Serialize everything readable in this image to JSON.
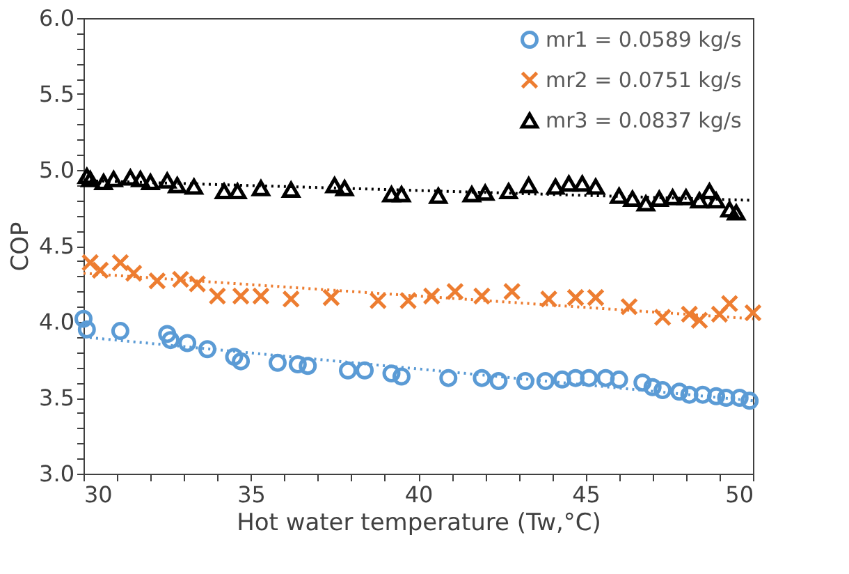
{
  "chart_data": {
    "type": "scatter",
    "xlabel": "Hot water temperature (Tw,°C)",
    "ylabel": "COP",
    "xlim": [
      30,
      50
    ],
    "ylim": [
      3.0,
      6.0
    ],
    "xticks": [
      30,
      {
        "value": 31,
        "label": null
      },
      {
        "value": 32,
        "label": null
      },
      {
        "value": 33,
        "label": null
      },
      {
        "value": 34,
        "label": null
      },
      35,
      {
        "value": 36,
        "label": null
      },
      {
        "value": 37,
        "label": null
      },
      {
        "value": 38,
        "label": null
      },
      {
        "value": 39,
        "label": null
      },
      40,
      {
        "value": 41,
        "label": null
      },
      {
        "value": 42,
        "label": null
      },
      {
        "value": 43,
        "label": null
      },
      {
        "value": 44,
        "label": null
      },
      45,
      {
        "value": 46,
        "label": null
      },
      {
        "value": 47,
        "label": null
      },
      {
        "value": 48,
        "label": null
      },
      {
        "value": 49,
        "label": null
      },
      50
    ],
    "yticks": [
      {
        "value": 3.0,
        "label": "3.0"
      },
      {
        "value": 3.1,
        "label": null
      },
      {
        "value": 3.2,
        "label": null
      },
      {
        "value": 3.3,
        "label": null
      },
      {
        "value": 3.4,
        "label": null
      },
      3.5,
      {
        "value": 3.6,
        "label": null
      },
      {
        "value": 3.7,
        "label": null
      },
      {
        "value": 3.8,
        "label": null
      },
      {
        "value": 3.9,
        "label": null
      },
      {
        "value": 4.0,
        "label": "4.0"
      },
      {
        "value": 4.1,
        "label": null
      },
      {
        "value": 4.2,
        "label": null
      },
      {
        "value": 4.3,
        "label": null
      },
      {
        "value": 4.4,
        "label": null
      },
      4.5,
      {
        "value": 4.6,
        "label": null
      },
      {
        "value": 4.7,
        "label": null
      },
      {
        "value": 4.8,
        "label": null
      },
      {
        "value": 4.9,
        "label": null
      },
      {
        "value": 5.0,
        "label": "5.0"
      },
      {
        "value": 5.1,
        "label": null
      },
      {
        "value": 5.2,
        "label": null
      },
      {
        "value": 5.3,
        "label": null
      },
      {
        "value": 5.4,
        "label": null
      },
      5.5,
      {
        "value": 5.6,
        "label": null
      },
      {
        "value": 5.7,
        "label": null
      },
      {
        "value": 5.8,
        "label": null
      },
      {
        "value": 5.9,
        "label": null
      },
      {
        "value": 6.0,
        "label": "6.0"
      }
    ],
    "grid": false,
    "legend": "top right",
    "series": [
      {
        "name": "mr1 = 0.0589 kg/s",
        "color": "#5b9bd5",
        "marker": "circle",
        "x": [
          30.0,
          30.1,
          31.1,
          32.5,
          32.6,
          33.1,
          33.7,
          34.5,
          34.7,
          35.8,
          36.4,
          36.7,
          37.9,
          38.4,
          39.2,
          39.5,
          40.9,
          41.9,
          42.4,
          43.2,
          43.8,
          44.3,
          44.7,
          45.1,
          45.6,
          46.0,
          46.7,
          47.0,
          47.3,
          47.8,
          48.1,
          48.5,
          48.9,
          49.2,
          49.6,
          49.9
        ],
        "values": [
          4.02,
          3.95,
          3.94,
          3.92,
          3.88,
          3.86,
          3.82,
          3.77,
          3.74,
          3.73,
          3.72,
          3.71,
          3.68,
          3.68,
          3.66,
          3.64,
          3.63,
          3.63,
          3.61,
          3.61,
          3.61,
          3.62,
          3.63,
          3.63,
          3.63,
          3.62,
          3.6,
          3.57,
          3.55,
          3.54,
          3.52,
          3.52,
          3.51,
          3.5,
          3.5,
          3.48
        ]
      },
      {
        "name": "mr2 = 0.0751 kg/s",
        "color": "#ed7d31",
        "marker": "cross",
        "x": [
          30.2,
          30.5,
          31.1,
          31.5,
          32.2,
          32.9,
          33.4,
          34.0,
          34.7,
          35.3,
          36.2,
          37.4,
          38.8,
          39.7,
          40.4,
          41.1,
          41.9,
          42.8,
          43.9,
          44.7,
          45.3,
          46.3,
          47.3,
          48.1,
          48.4,
          49.0,
          49.3,
          50.0
        ],
        "values": [
          4.39,
          4.34,
          4.39,
          4.32,
          4.27,
          4.28,
          4.25,
          4.17,
          4.17,
          4.17,
          4.15,
          4.16,
          4.14,
          4.14,
          4.17,
          4.2,
          4.17,
          4.2,
          4.15,
          4.16,
          4.16,
          4.1,
          4.03,
          4.05,
          4.01,
          4.05,
          4.12,
          4.06
        ]
      },
      {
        "name": "mr3 = 0.0837 kg/s",
        "color": "#000000",
        "marker": "triangle",
        "x": [
          30.1,
          30.2,
          30.6,
          30.9,
          31.4,
          31.7,
          32.0,
          32.5,
          32.8,
          33.3,
          34.2,
          34.6,
          35.3,
          36.2,
          37.5,
          37.8,
          39.2,
          39.5,
          40.6,
          41.6,
          42.0,
          42.7,
          43.3,
          44.1,
          44.5,
          44.9,
          45.3,
          46.0,
          46.4,
          46.8,
          47.2,
          47.6,
          48.0,
          48.4,
          48.7,
          48.9,
          49.3,
          49.5
        ],
        "values": [
          4.96,
          4.94,
          4.92,
          4.94,
          4.95,
          4.94,
          4.92,
          4.93,
          4.9,
          4.89,
          4.86,
          4.86,
          4.88,
          4.87,
          4.9,
          4.88,
          4.84,
          4.84,
          4.83,
          4.84,
          4.85,
          4.86,
          4.9,
          4.89,
          4.91,
          4.91,
          4.89,
          4.83,
          4.81,
          4.78,
          4.81,
          4.82,
          4.82,
          4.8,
          4.86,
          4.8,
          4.74,
          4.72
        ]
      },
      {
        "type": "line",
        "line_style": "dotted",
        "color": "#5b9bd5",
        "x": [
          30,
          50
        ],
        "values": [
          3.9,
          3.48
        ]
      },
      {
        "type": "line",
        "line_style": "dotted",
        "color": "#ed7d31",
        "x": [
          30,
          50
        ],
        "values": [
          4.32,
          4.02
        ]
      },
      {
        "type": "line",
        "line_style": "dotted",
        "color": "#000000",
        "x": [
          30,
          50
        ],
        "values": [
          4.93,
          4.8
        ]
      }
    ]
  }
}
